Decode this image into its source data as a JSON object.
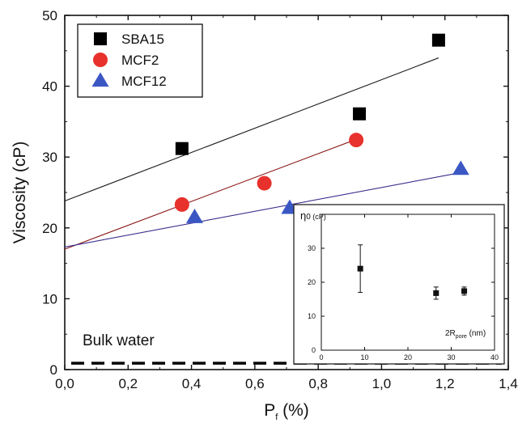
{
  "chart_data": [
    {
      "type": "scatter",
      "xlabel_main": "P",
      "xlabel_sub": "f",
      "xlabel_unit": "(%)",
      "ylabel": "Viscosity (cP)",
      "xlim": [
        0,
        1.4
      ],
      "ylim": [
        0,
        50
      ],
      "xticks": [
        "0,0",
        "0,2",
        "0,4",
        "0,6",
        "0,8",
        "1,0",
        "1,2",
        "1,4"
      ],
      "yticks": [
        "0",
        "10",
        "20",
        "30",
        "40",
        "50"
      ],
      "grid": false,
      "legend_position": "top-left",
      "series": [
        {
          "name": "SBA15",
          "marker": "square",
          "color": "#000000",
          "x": [
            0.37,
            0.93,
            1.18
          ],
          "y": [
            31.2,
            36.1,
            46.5
          ],
          "fit": {
            "x": [
              0,
              1.18
            ],
            "y": [
              23.8,
              44.0
            ],
            "color": "#1a1a1a"
          }
        },
        {
          "name": "MCF2",
          "marker": "circle",
          "color": "#e8312c",
          "x": [
            0.37,
            0.63,
            0.92
          ],
          "y": [
            23.3,
            26.3,
            32.4
          ],
          "fit": {
            "x": [
              0,
              0.92
            ],
            "y": [
              17.0,
              32.5
            ],
            "color": "#8b1a1a"
          }
        },
        {
          "name": "MCF12",
          "marker": "triangle",
          "color": "#3a57c4",
          "x": [
            0.41,
            0.71,
            1.25
          ],
          "y": [
            21.5,
            22.8,
            28.3
          ],
          "fit": {
            "x": [
              0,
              1.25
            ],
            "y": [
              17.3,
              27.8
            ],
            "color": "#3a2f8c"
          }
        }
      ],
      "annotations": [
        {
          "text": "Bulk water",
          "y_reference": 0.9,
          "line_style": "dashed"
        }
      ]
    },
    {
      "type": "scatter",
      "ylabel_symbol": "η",
      "ylabel_sub": "0",
      "ylabel_unit": "(cP)",
      "xlabel_main": "2R",
      "xlabel_sub": "pore",
      "xlabel_unit": "(nm)",
      "xlim": [
        0,
        40
      ],
      "ylim": [
        0,
        40
      ],
      "xticks": [
        "0",
        "10",
        "20",
        "30",
        "40"
      ],
      "yticks": [
        "0",
        "10",
        "20",
        "30"
      ],
      "series": [
        {
          "marker": "square",
          "color": "#111111",
          "x": [
            9,
            26.5,
            33
          ],
          "y": [
            24,
            16.8,
            17.4
          ],
          "err": [
            7,
            1.8,
            1.2
          ]
        }
      ]
    }
  ]
}
